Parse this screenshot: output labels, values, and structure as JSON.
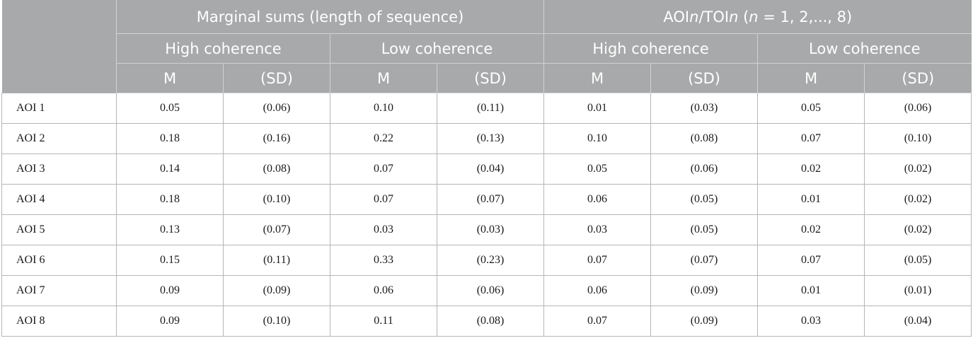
{
  "header": {
    "group1": "Marginal sums (length of sequence)",
    "group2": {
      "p1": "AOI",
      "p2": "n",
      "p3": "/TOI",
      "p4": "n",
      "p5": " (",
      "p6": "n",
      "p7": " = 1, 2,..., 8)"
    },
    "subgroups": [
      "High coherence",
      "Low coherence",
      "High coherence",
      "Low coherence"
    ],
    "stats": [
      "M",
      "(SD)",
      "M",
      "(SD)",
      "M",
      "(SD)",
      "M",
      "(SD)"
    ]
  },
  "rows": [
    {
      "label": "AOI 1",
      "values": [
        "0.05",
        "(0.06)",
        "0.10",
        "(0.11)",
        "0.01",
        "(0.03)",
        "0.05",
        "(0.06)"
      ]
    },
    {
      "label": "AOI 2",
      "values": [
        "0.18",
        "(0.16)",
        "0.22",
        "(0.13)",
        "0.10",
        "(0.08)",
        "0.07",
        "(0.10)"
      ]
    },
    {
      "label": "AOI 3",
      "values": [
        "0.14",
        "(0.08)",
        "0.07",
        "(0.04)",
        "0.05",
        "(0.06)",
        "0.02",
        "(0.02)"
      ]
    },
    {
      "label": "AOI 4",
      "values": [
        "0.18",
        "(0.10)",
        "0.07",
        "(0.07)",
        "0.06",
        "(0.05)",
        "0.01",
        "(0.02)"
      ]
    },
    {
      "label": "AOI 5",
      "values": [
        "0.13",
        "(0.07)",
        "0.03",
        "(0.03)",
        "0.03",
        "(0.05)",
        "0.02",
        "(0.02)"
      ]
    },
    {
      "label": "AOI 6",
      "values": [
        "0.15",
        "(0.11)",
        "0.33",
        "(0.23)",
        "0.07",
        "(0.07)",
        "0.07",
        "(0.05)"
      ]
    },
    {
      "label": "AOI 7",
      "values": [
        "0.09",
        "(0.09)",
        "0.06",
        "(0.06)",
        "0.06",
        "(0.09)",
        "0.01",
        "(0.01)"
      ]
    },
    {
      "label": "AOI 8",
      "values": [
        "0.09",
        "(0.10)",
        "0.11",
        "(0.08)",
        "0.07",
        "(0.09)",
        "0.03",
        "(0.04)"
      ]
    }
  ]
}
